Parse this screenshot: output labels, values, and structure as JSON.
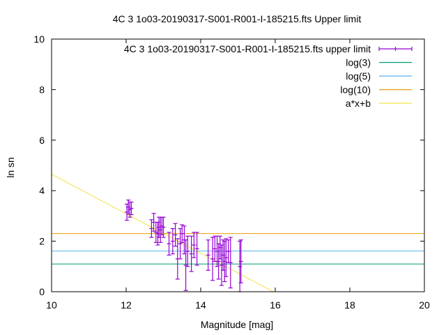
{
  "chart_data": {
    "type": "scatter",
    "title": "4C 3 1o03-20190317-S001-R001-I-185215.fts Upper limit",
    "xlabel": "Magnitude [mag]",
    "ylabel": "ln sn",
    "xlim": [
      10,
      20
    ],
    "ylim": [
      0,
      10
    ],
    "x_ticks": [
      "10",
      "12",
      "14",
      "16",
      "18",
      "20"
    ],
    "y_ticks": [
      "0",
      "2",
      "4",
      "6",
      "8",
      "10"
    ],
    "grid": false,
    "legend_position": "top-right",
    "colors": {
      "points": "#9400d3",
      "log3": "#009e73",
      "log5": "#56b4e9",
      "log10": "#e69f00",
      "fit": "#f0e442"
    },
    "series": [
      {
        "name": "4C 3 1o03-20190317-S001-R001-I-185215.fts upper limit",
        "kind": "errorbars",
        "points": [
          {
            "x": 12.02,
            "y": 3.15,
            "err": 0.32
          },
          {
            "x": 12.06,
            "y": 3.35,
            "err": 0.28
          },
          {
            "x": 12.1,
            "y": 3.25,
            "err": 0.3
          },
          {
            "x": 12.14,
            "y": 3.3,
            "err": 0.25
          },
          {
            "x": 12.68,
            "y": 2.5,
            "err": 0.35
          },
          {
            "x": 12.74,
            "y": 2.75,
            "err": 0.35
          },
          {
            "x": 12.8,
            "y": 2.35,
            "err": 0.4
          },
          {
            "x": 12.85,
            "y": 2.3,
            "err": 0.45
          },
          {
            "x": 12.88,
            "y": 2.55,
            "err": 0.4
          },
          {
            "x": 12.92,
            "y": 2.45,
            "err": 0.5
          },
          {
            "x": 12.96,
            "y": 2.6,
            "err": 0.35
          },
          {
            "x": 13.0,
            "y": 2.55,
            "err": 0.4
          },
          {
            "x": 13.15,
            "y": 1.9,
            "err": 0.45
          },
          {
            "x": 13.25,
            "y": 2.0,
            "err": 0.5
          },
          {
            "x": 13.32,
            "y": 2.25,
            "err": 0.45
          },
          {
            "x": 13.38,
            "y": 1.3,
            "err": 0.8
          },
          {
            "x": 13.45,
            "y": 1.9,
            "err": 0.6
          },
          {
            "x": 13.5,
            "y": 2.3,
            "err": 0.35
          },
          {
            "x": 13.56,
            "y": 2.05,
            "err": 0.55
          },
          {
            "x": 13.6,
            "y": 1.05,
            "err": 1.0
          },
          {
            "x": 13.65,
            "y": 1.6,
            "err": 0.6
          },
          {
            "x": 13.75,
            "y": 1.5,
            "err": 0.7
          },
          {
            "x": 13.82,
            "y": 1.85,
            "err": 0.5
          },
          {
            "x": 13.9,
            "y": 1.7,
            "err": 0.65
          },
          {
            "x": 14.2,
            "y": 1.45,
            "err": 0.6
          },
          {
            "x": 14.32,
            "y": 1.3,
            "err": 0.85
          },
          {
            "x": 14.38,
            "y": 1.7,
            "err": 0.5
          },
          {
            "x": 14.44,
            "y": 1.6,
            "err": 0.6
          },
          {
            "x": 14.48,
            "y": 1.2,
            "err": 0.7
          },
          {
            "x": 14.52,
            "y": 1.75,
            "err": 0.45
          },
          {
            "x": 14.56,
            "y": 1.05,
            "err": 0.8
          },
          {
            "x": 14.6,
            "y": 1.45,
            "err": 0.6
          },
          {
            "x": 14.64,
            "y": 1.2,
            "err": 0.8
          },
          {
            "x": 14.68,
            "y": 1.35,
            "err": 0.75
          },
          {
            "x": 14.74,
            "y": 1.6,
            "err": 0.45
          },
          {
            "x": 14.8,
            "y": 1.15,
            "err": 1.0
          },
          {
            "x": 15.05,
            "y": 1.0,
            "err": 1.0
          },
          {
            "x": 15.08,
            "y": 1.2,
            "err": 0.85
          }
        ]
      },
      {
        "name": "log(3)",
        "kind": "hline",
        "y": 1.0986
      },
      {
        "name": "log(5)",
        "kind": "hline",
        "y": 1.6094
      },
      {
        "name": "log(10)",
        "kind": "hline",
        "y": 2.3026
      },
      {
        "name": "a*x+b",
        "kind": "line",
        "points": [
          {
            "x": 10,
            "y": 4.65
          },
          {
            "x": 15.95,
            "y": 0
          }
        ]
      }
    ]
  }
}
